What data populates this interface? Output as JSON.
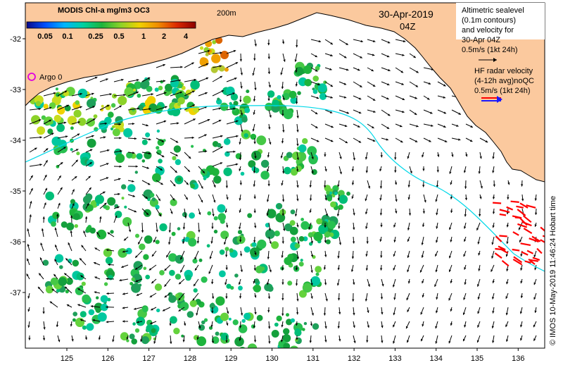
{
  "colorbar": {
    "title": "MODIS Chl-a mg/m3 OC3",
    "ticks": [
      "0.05",
      "0.1",
      "0.25",
      "0.5",
      "1",
      "2",
      "4"
    ],
    "stops": [
      "#0a0a8a",
      "#0050ff",
      "#00b4ff",
      "#00d2a0",
      "#1eb43c",
      "#8cd228",
      "#f0d200",
      "#f08c00",
      "#dc2800",
      "#8c0000"
    ]
  },
  "labels": {
    "isobath": "200m",
    "date": "30-Apr-2019",
    "time": "04Z",
    "argo": "Argo 0"
  },
  "legend": {
    "altimetry_lines": [
      "Altimetric sealevel",
      "(0.1m contours)",
      "and velocity for",
      "30-Apr 04Z",
      "0.5m/s (1kt 24h)"
    ],
    "hf_lines": [
      "HF radar velocity",
      "(4-12h avg)noQC",
      "0.5m/s (1kt 24h)"
    ]
  },
  "axes": {
    "x_ticks": [
      "125",
      "126",
      "127",
      "128",
      "129",
      "130",
      "131",
      "132",
      "133",
      "134",
      "135",
      "136"
    ],
    "y_ticks": [
      "-32",
      "-33",
      "-34",
      "-35",
      "-36",
      "-37"
    ]
  },
  "credit": "© IMOS 10-May-2019 11:46:24 Hobart time",
  "colors": {
    "land": "#fbc99e",
    "sea": "#ffffff",
    "isobath": "#00d8e8",
    "altimetry_arrow": "#000000",
    "hf_arrow": "#ff0000",
    "argo": "#e000e0"
  }
}
